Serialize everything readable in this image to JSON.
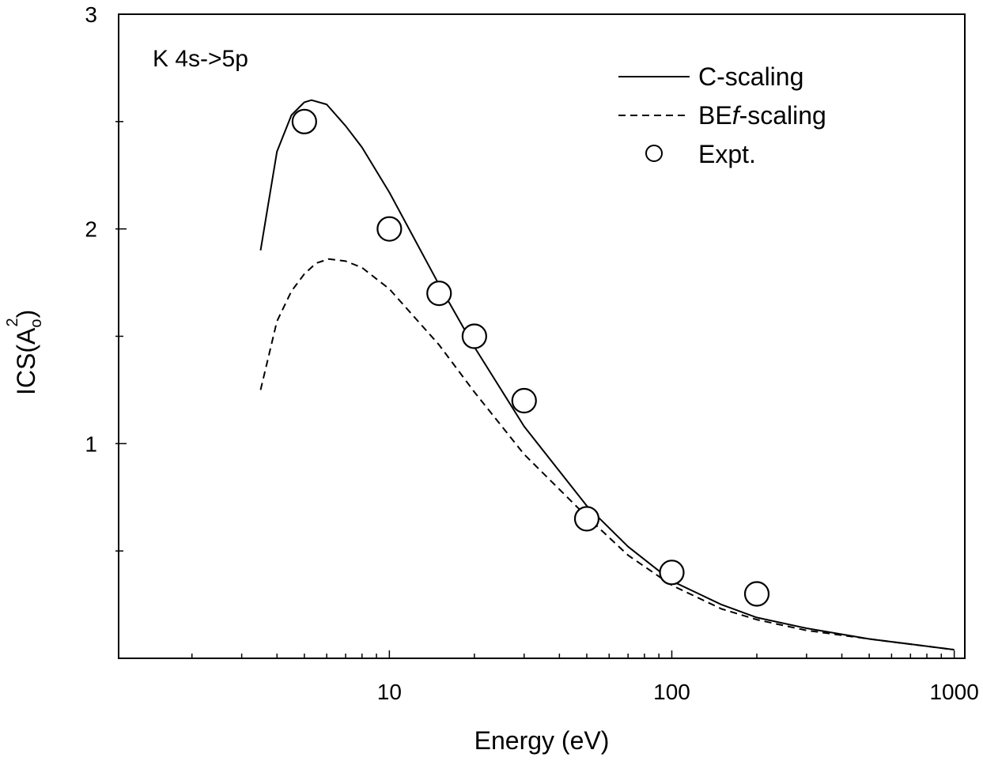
{
  "chart_data": {
    "type": "line",
    "annotation": "K 4s->5p",
    "xlabel": "Energy (eV)",
    "ylabel": {
      "main": "ICS(A",
      "sub": "o",
      "sup": "2",
      "close": ")"
    },
    "xscale": "log",
    "xlim": [
      1.1,
      1090
    ],
    "ylim": [
      0,
      3
    ],
    "xticks": [
      {
        "value": 10,
        "label": "10"
      },
      {
        "value": 100,
        "label": "100"
      },
      {
        "value": 1000,
        "label": "1000"
      }
    ],
    "yticks": [
      {
        "value": 1,
        "label": "1"
      },
      {
        "value": 2,
        "label": "2"
      },
      {
        "value": 3,
        "label": "3"
      }
    ],
    "grid": false,
    "legend_position": "top-right",
    "series": [
      {
        "name": "C-scaling",
        "style": "solid",
        "color": "#000000",
        "x": [
          3.5,
          4,
          4.5,
          5,
          5.3,
          6,
          7,
          8,
          10,
          15,
          20,
          30,
          50,
          70,
          100,
          150,
          200,
          300,
          500,
          1000
        ],
        "y": [
          1.9,
          2.36,
          2.53,
          2.59,
          2.6,
          2.58,
          2.48,
          2.38,
          2.17,
          1.74,
          1.45,
          1.08,
          0.71,
          0.52,
          0.36,
          0.25,
          0.19,
          0.14,
          0.09,
          0.04
        ]
      },
      {
        "name": "BEf-scaling",
        "name_parts": [
          "BE",
          "f",
          "-scaling"
        ],
        "style": "dashed",
        "color": "#000000",
        "x": [
          3.5,
          4,
          4.5,
          5,
          5.5,
          6.1,
          7,
          8,
          10,
          15,
          20,
          30,
          50,
          70,
          100,
          150,
          200,
          300,
          500,
          1000
        ],
        "y": [
          1.25,
          1.57,
          1.71,
          1.79,
          1.84,
          1.86,
          1.85,
          1.82,
          1.72,
          1.46,
          1.24,
          0.95,
          0.66,
          0.48,
          0.34,
          0.23,
          0.18,
          0.13,
          0.09,
          0.04
        ]
      },
      {
        "name": "Expt.",
        "style": "open-circle",
        "color": "#000000",
        "x": [
          5,
          10,
          15,
          20,
          30,
          50,
          100,
          200
        ],
        "y": [
          2.5,
          2.0,
          1.7,
          1.5,
          1.2,
          0.65,
          0.4,
          0.3
        ]
      }
    ]
  }
}
